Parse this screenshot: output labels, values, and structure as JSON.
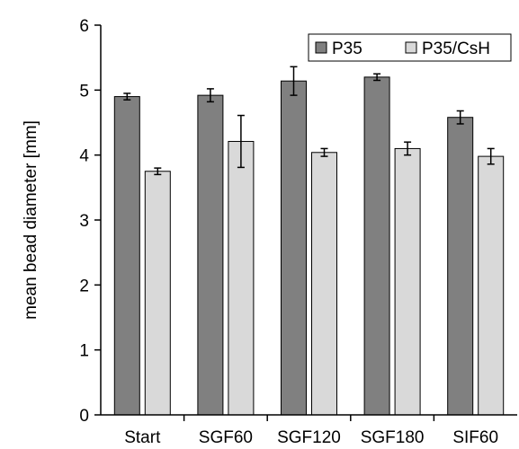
{
  "chart_data": {
    "type": "bar",
    "title": "",
    "xlabel": "",
    "ylabel": "mean bead diameter [mm]",
    "ylim": [
      0,
      6
    ],
    "yticks": [
      "0",
      "1",
      "2",
      "3",
      "4",
      "5",
      "6"
    ],
    "categories": [
      "Start",
      "SGF60",
      "SGF120",
      "SGF180",
      "SIF60"
    ],
    "series": [
      {
        "name": "P35",
        "color": "#808080",
        "values": [
          4.9,
          4.92,
          5.14,
          5.2,
          4.58
        ],
        "errors": [
          0.05,
          0.1,
          0.22,
          0.05,
          0.1
        ]
      },
      {
        "name": "P35/CsH",
        "color": "#d9d9d9",
        "values": [
          3.75,
          4.21,
          4.04,
          4.1,
          3.98
        ],
        "errors": [
          0.05,
          0.4,
          0.06,
          0.1,
          0.12
        ]
      }
    ],
    "grid": false,
    "legend": "top-right"
  }
}
